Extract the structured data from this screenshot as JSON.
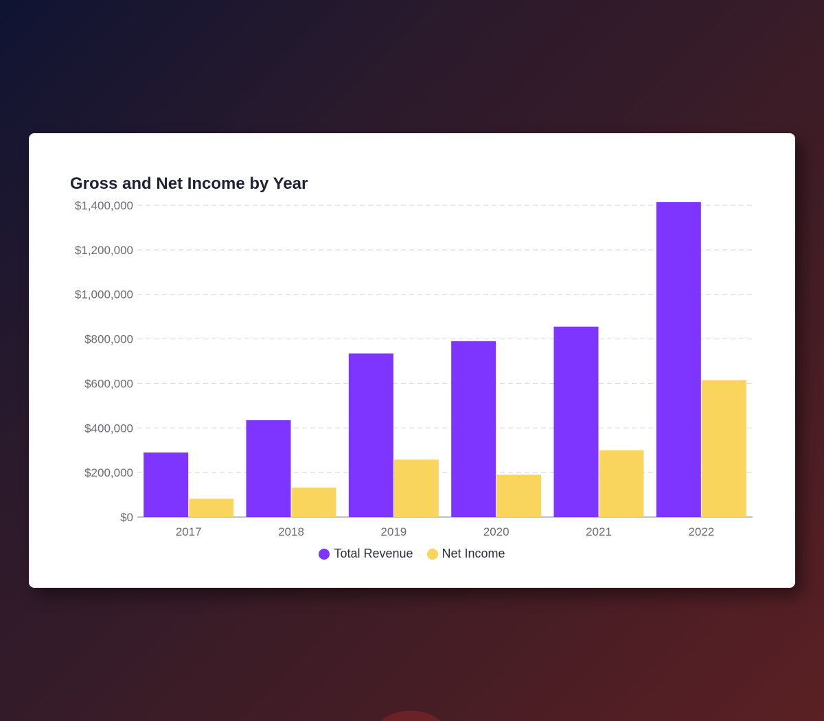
{
  "chart_data": {
    "type": "bar",
    "title": "Gross and Net Income by Year",
    "xlabel": "",
    "ylabel": "",
    "categories": [
      "2017",
      "2018",
      "2019",
      "2020",
      "2021",
      "2022"
    ],
    "series": [
      {
        "name": "Total Revenue",
        "color": "#7e35ff",
        "values": [
          290000,
          435000,
          735000,
          790000,
          855000,
          1415000
        ]
      },
      {
        "name": "Net Income",
        "color": "#f9d55d",
        "values": [
          82000,
          132000,
          258000,
          190000,
          300000,
          615000
        ]
      }
    ],
    "ylim": [
      0,
      1400000
    ],
    "yticks": [
      0,
      200000,
      400000,
      600000,
      800000,
      1000000,
      1200000,
      1400000
    ],
    "ytick_labels": [
      "$0",
      "$200,000",
      "$400,000",
      "$600,000",
      "$800,000",
      "$1,000,000",
      "$1,200,000",
      "$1,400,000"
    ],
    "grid": true,
    "grid_style": "dashed",
    "legend_position": "bottom-center"
  }
}
